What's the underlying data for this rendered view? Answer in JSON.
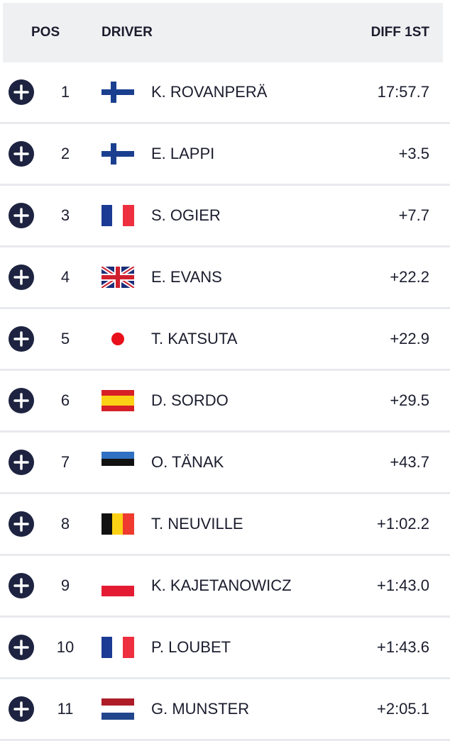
{
  "header": {
    "pos": "POS",
    "driver": "DRIVER",
    "diff": "DIFF 1ST"
  },
  "rows": [
    [
      "1",
      "K. ROVANPERÄ",
      "17:57.7"
    ],
    [
      "2",
      "E. LAPPI",
      "+3.5"
    ],
    [
      "3",
      "S. OGIER",
      "+7.7"
    ],
    [
      "4",
      "E. EVANS",
      "+22.2"
    ],
    [
      "5",
      "T. KATSUTA",
      "+22.9"
    ],
    [
      "6",
      "D. SORDO",
      "+29.5"
    ],
    [
      "7",
      "O. TÄNAK",
      "+43.7"
    ],
    [
      "8",
      "T. NEUVILLE",
      "+1:02.2"
    ],
    [
      "9",
      "K. KAJETANOWICZ",
      "+1:43.0"
    ],
    [
      "10",
      "P. LOUBET",
      "+1:43.6"
    ],
    [
      "11",
      "G. MUNSTER",
      "+2:05.1"
    ]
  ]
}
